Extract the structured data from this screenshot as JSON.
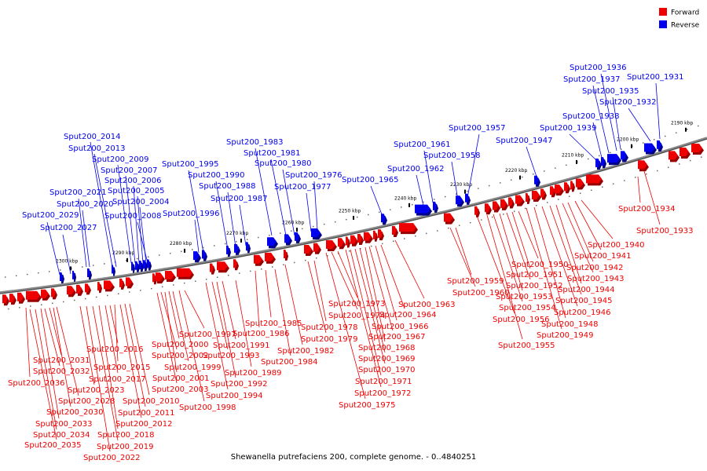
{
  "caption": "Shewanella putrefaciens 200, complete genome. - 0..4840251",
  "legend": [
    {
      "label": "Forward",
      "color": "#ee0000"
    },
    {
      "label": "Reverse",
      "color": "#0000ee"
    }
  ],
  "colors": {
    "forward": "#ee0000",
    "reverse": "#0000ee",
    "forward_side": "#990000",
    "reverse_side": "#000088",
    "backbone": "#666666"
  },
  "ticks": [
    "2300 kbp",
    "2290 kbp",
    "2280 kbp",
    "2270 kbp",
    "2260 kbp",
    "2250 kbp",
    "2240 kbp",
    "2230 kbp",
    "2220 kbp",
    "2210 kbp",
    "2200 kbp",
    "2190 kbp"
  ],
  "genes": [
    {
      "label": "Sput200_2036",
      "strand": "forward"
    },
    {
      "label": "Sput200_2035",
      "strand": "forward"
    },
    {
      "label": "Sput200_2034",
      "strand": "forward"
    },
    {
      "label": "Sput200_2033",
      "strand": "forward"
    },
    {
      "label": "Sput200_2032",
      "strand": "forward"
    },
    {
      "label": "Sput200_2031",
      "strand": "forward"
    },
    {
      "label": "Sput200_2030",
      "strand": "forward"
    },
    {
      "label": "Sput200_2029",
      "strand": "reverse"
    },
    {
      "label": "Sput200_2028",
      "strand": "forward"
    },
    {
      "label": "Sput200_2027",
      "strand": "reverse"
    },
    {
      "label": "Sput200_2023",
      "strand": "forward"
    },
    {
      "label": "Sput200_2022",
      "strand": "forward"
    },
    {
      "label": "Sput200_2021",
      "strand": "reverse"
    },
    {
      "label": "Sput200_2020",
      "strand": "reverse"
    },
    {
      "label": "Sput200_2019",
      "strand": "forward"
    },
    {
      "label": "Sput200_2018",
      "strand": "forward"
    },
    {
      "label": "Sput200_2017",
      "strand": "forward"
    },
    {
      "label": "Sput200_2016",
      "strand": "forward"
    },
    {
      "label": "Sput200_2015",
      "strand": "forward"
    },
    {
      "label": "Sput200_2014",
      "strand": "reverse"
    },
    {
      "label": "Sput200_2013",
      "strand": "reverse"
    },
    {
      "label": "Sput200_2012",
      "strand": "forward"
    },
    {
      "label": "Sput200_2011",
      "strand": "forward"
    },
    {
      "label": "Sput200_2010",
      "strand": "forward"
    },
    {
      "label": "Sput200_2009",
      "strand": "reverse"
    },
    {
      "label": "Sput200_2008",
      "strand": "reverse"
    },
    {
      "label": "Sput200_2007",
      "strand": "reverse"
    },
    {
      "label": "Sput200_2006",
      "strand": "reverse"
    },
    {
      "label": "Sput200_2005",
      "strand": "reverse"
    },
    {
      "label": "Sput200_2004",
      "strand": "reverse"
    },
    {
      "label": "Sput200_2003",
      "strand": "forward"
    },
    {
      "label": "Sput200_2002",
      "strand": "forward"
    },
    {
      "label": "Sput200_2001",
      "strand": "forward"
    },
    {
      "label": "Sput200_2000",
      "strand": "forward"
    },
    {
      "label": "Sput200_1999",
      "strand": "forward"
    },
    {
      "label": "Sput200_1998",
      "strand": "forward"
    },
    {
      "label": "Sput200_1997",
      "strand": "forward"
    },
    {
      "label": "Sput200_1996",
      "strand": "reverse"
    },
    {
      "label": "Sput200_1995",
      "strand": "reverse"
    },
    {
      "label": "Sput200_1994",
      "strand": "forward"
    },
    {
      "label": "Sput200_1993",
      "strand": "forward"
    },
    {
      "label": "Sput200_1992",
      "strand": "forward"
    },
    {
      "label": "Sput200_1991",
      "strand": "forward"
    },
    {
      "label": "Sput200_1990",
      "strand": "reverse"
    },
    {
      "label": "Sput200_1989",
      "strand": "forward"
    },
    {
      "label": "Sput200_1988",
      "strand": "reverse"
    },
    {
      "label": "Sput200_1987",
      "strand": "reverse"
    },
    {
      "label": "Sput200_1986",
      "strand": "forward"
    },
    {
      "label": "Sput200_1985",
      "strand": "forward"
    },
    {
      "label": "Sput200_1984",
      "strand": "forward"
    },
    {
      "label": "Sput200_1983",
      "strand": "reverse"
    },
    {
      "label": "Sput200_1982",
      "strand": "forward"
    },
    {
      "label": "Sput200_1981",
      "strand": "reverse"
    },
    {
      "label": "Sput200_1980",
      "strand": "reverse"
    },
    {
      "label": "Sput200_1979",
      "strand": "forward"
    },
    {
      "label": "Sput200_1978",
      "strand": "forward"
    },
    {
      "label": "Sput200_1977",
      "strand": "reverse"
    },
    {
      "label": "Sput200_1976",
      "strand": "reverse"
    },
    {
      "label": "Sput200_1975",
      "strand": "forward"
    },
    {
      "label": "Sput200_1974",
      "strand": "forward"
    },
    {
      "label": "Sput200_1973",
      "strand": "forward"
    },
    {
      "label": "Sput200_1972",
      "strand": "forward"
    },
    {
      "label": "Sput200_1971",
      "strand": "forward"
    },
    {
      "label": "Sput200_1970",
      "strand": "forward"
    },
    {
      "label": "Sput200_1969",
      "strand": "forward"
    },
    {
      "label": "Sput200_1968",
      "strand": "forward"
    },
    {
      "label": "Sput200_1967",
      "strand": "forward"
    },
    {
      "label": "Sput200_1966",
      "strand": "forward"
    },
    {
      "label": "Sput200_1965",
      "strand": "reverse"
    },
    {
      "label": "Sput200_1964",
      "strand": "forward"
    },
    {
      "label": "Sput200_1963",
      "strand": "forward"
    },
    {
      "label": "Sput200_1962",
      "strand": "reverse"
    },
    {
      "label": "Sput200_1961",
      "strand": "reverse"
    },
    {
      "label": "Sput200_1960",
      "strand": "forward"
    },
    {
      "label": "Sput200_1959",
      "strand": "forward"
    },
    {
      "label": "Sput200_1958",
      "strand": "reverse"
    },
    {
      "label": "Sput200_1957",
      "strand": "reverse"
    },
    {
      "label": "Sput200_1956",
      "strand": "forward"
    },
    {
      "label": "Sput200_1955",
      "strand": "forward"
    },
    {
      "label": "Sput200_1954",
      "strand": "forward"
    },
    {
      "label": "Sput200_1953",
      "strand": "forward"
    },
    {
      "label": "Sput200_1952",
      "strand": "forward"
    },
    {
      "label": "Sput200_1951",
      "strand": "forward"
    },
    {
      "label": "Sput200_1950",
      "strand": "forward"
    },
    {
      "label": "Sput200_1949",
      "strand": "forward"
    },
    {
      "label": "Sput200_1948",
      "strand": "forward"
    },
    {
      "label": "Sput200_1947",
      "strand": "reverse"
    },
    {
      "label": "Sput200_1946",
      "strand": "forward"
    },
    {
      "label": "Sput200_1945",
      "strand": "forward"
    },
    {
      "label": "Sput200_1944",
      "strand": "forward"
    },
    {
      "label": "Sput200_1943",
      "strand": "forward"
    },
    {
      "label": "Sput200_1942",
      "strand": "forward"
    },
    {
      "label": "Sput200_1941",
      "strand": "forward"
    },
    {
      "label": "Sput200_1940",
      "strand": "forward"
    },
    {
      "label": "Sput200_1939",
      "strand": "reverse"
    },
    {
      "label": "Sput200_1938",
      "strand": "reverse"
    },
    {
      "label": "Sput200_1937",
      "strand": "reverse"
    },
    {
      "label": "Sput200_1936",
      "strand": "reverse"
    },
    {
      "label": "Sput200_1935",
      "strand": "reverse"
    },
    {
      "label": "Sput200_1934",
      "strand": "forward"
    },
    {
      "label": "Sput200_1933",
      "strand": "forward"
    },
    {
      "label": "Sput200_1932",
      "strand": "reverse"
    },
    {
      "label": "Sput200_1931",
      "strand": "reverse"
    }
  ]
}
